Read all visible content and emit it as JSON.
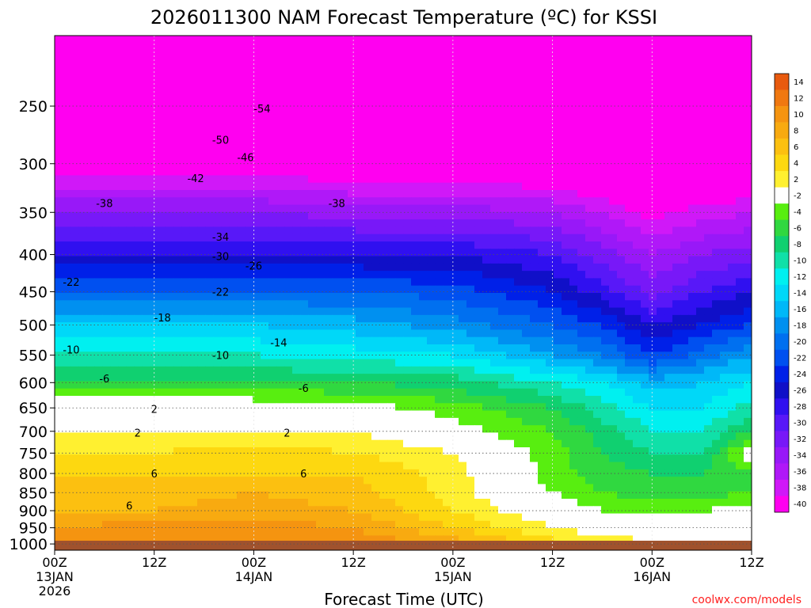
{
  "chart_data": {
    "type": "heatmap",
    "title": "2026011300 NAM Forecast Temperature (ºC) for KSSI",
    "xlabel": "Forecast Time (UTC)",
    "ylabel": "",
    "credit": "coolwx.com/models",
    "x_range_hours": [
      0,
      84
    ],
    "x_ticks": [
      {
        "hour": 0,
        "label": "00Z",
        "sub": "13JAN",
        "sub2": "2026"
      },
      {
        "hour": 12,
        "label": "12Z",
        "sub": "",
        "sub2": ""
      },
      {
        "hour": 24,
        "label": "00Z",
        "sub": "14JAN",
        "sub2": ""
      },
      {
        "hour": 36,
        "label": "12Z",
        "sub": "",
        "sub2": ""
      },
      {
        "hour": 48,
        "label": "00Z",
        "sub": "15JAN",
        "sub2": ""
      },
      {
        "hour": 60,
        "label": "12Z",
        "sub": "",
        "sub2": ""
      },
      {
        "hour": 72,
        "label": "00Z",
        "sub": "16JAN",
        "sub2": ""
      },
      {
        "hour": 84,
        "label": "12Z",
        "sub": "",
        "sub2": ""
      }
    ],
    "y_scale": "pressure",
    "y_range_hpa": [
      1020,
      200
    ],
    "y_ticks": [
      250,
      300,
      350,
      400,
      450,
      500,
      550,
      600,
      650,
      700,
      750,
      800,
      850,
      900,
      950,
      1000
    ],
    "colorbar": {
      "labels": [
        "14",
        "12",
        "10",
        "8",
        "6",
        "4",
        "2",
        "-2",
        "-4",
        "-6",
        "-8",
        "-10",
        "-12",
        "-14",
        "-16",
        "-18",
        "-20",
        "-22",
        "-24",
        "-26",
        "-28",
        "-30",
        "-32",
        "-34",
        "-36",
        "-38",
        "-40"
      ],
      "colors": [
        "#e85a0e",
        "#f07810",
        "#f59410",
        "#f8aa10",
        "#fcc010",
        "#fdd810",
        "#fff030",
        "#ffffff",
        "#58ee10",
        "#30d840",
        "#10d070",
        "#10e0a8",
        "#00f0f0",
        "#00d8f8",
        "#00b8f8",
        "#0090f0",
        "#0070f0",
        "#0050f0",
        "#0020e8",
        "#1010c8",
        "#3010f0",
        "#5818f8",
        "#7818f8",
        "#9818f8",
        "#b018f8",
        "#d018f8",
        "#ff00f0"
      ]
    },
    "temperature_profile": {
      "hours": [
        0,
        12,
        24,
        36,
        48,
        60,
        66,
        72,
        78,
        84
      ],
      "levels_hpa": [
        1000,
        950,
        900,
        850,
        800,
        750,
        700,
        650,
        600,
        550,
        500,
        450,
        400,
        350,
        300,
        250,
        200
      ],
      "celsius": [
        [
          12,
          12,
          12,
          12,
          9,
          5,
          4,
          2,
          2,
          2
        ],
        [
          10,
          11,
          11,
          10,
          6,
          2,
          0,
          0,
          0,
          1
        ],
        [
          8,
          8,
          9,
          8,
          4,
          0,
          -2,
          -3,
          -2,
          -1
        ],
        [
          7,
          7,
          8,
          7,
          3,
          -2,
          -4,
          -5,
          -5,
          -4
        ],
        [
          6,
          6,
          6,
          6,
          3,
          -3,
          -5,
          -6,
          -6,
          -4
        ],
        [
          4,
          4,
          5,
          4,
          2,
          -3,
          -6,
          -8,
          -8,
          0
        ],
        [
          2,
          2,
          2,
          2,
          -1,
          -4,
          -7,
          -10,
          -10,
          -6
        ],
        [
          0,
          0,
          0,
          -1,
          -3,
          -6,
          -9,
          -12,
          -12,
          -9
        ],
        [
          -6,
          -6,
          -6,
          -6,
          -7,
          -10,
          -12,
          -15,
          -14,
          -12
        ],
        [
          -10,
          -10,
          -10,
          -11,
          -12,
          -16,
          -18,
          -22,
          -19,
          -16
        ],
        [
          -14,
          -14,
          -14,
          -15,
          -17,
          -20,
          -22,
          -26,
          -24,
          -22
        ],
        [
          -20,
          -20,
          -20,
          -20,
          -21,
          -24,
          -27,
          -31,
          -28,
          -26
        ],
        [
          -26,
          -26,
          -26,
          -26,
          -26,
          -28,
          -31,
          -34,
          -32,
          -31
        ],
        [
          -32,
          -32,
          -32,
          -33,
          -33,
          -34,
          -36,
          -39,
          -37,
          -36
        ],
        [
          -40,
          -40,
          -40,
          -41,
          -41,
          -42,
          -43,
          -45,
          -44,
          -43
        ],
        [
          -52,
          -52,
          -52,
          -52,
          -51,
          -50,
          -49,
          -48,
          -49,
          -50
        ],
        [
          -58,
          -58,
          -58,
          -58,
          -57,
          -56,
          -55,
          -54,
          -55,
          -56
        ]
      ]
    },
    "contour_labels": [
      {
        "value": "-54",
        "hour": 25,
        "hpa": 252
      },
      {
        "value": "-50",
        "hour": 20,
        "hpa": 278
      },
      {
        "value": "-46",
        "hour": 23,
        "hpa": 294
      },
      {
        "value": "-42",
        "hour": 17,
        "hpa": 314
      },
      {
        "value": "-38",
        "hour": 6,
        "hpa": 340
      },
      {
        "value": "-38",
        "hour": 34,
        "hpa": 340
      },
      {
        "value": "-34",
        "hour": 20,
        "hpa": 378
      },
      {
        "value": "-30",
        "hour": 20,
        "hpa": 402
      },
      {
        "value": "-26",
        "hour": 24,
        "hpa": 414
      },
      {
        "value": "-22",
        "hour": 2,
        "hpa": 436
      },
      {
        "value": "-22",
        "hour": 20,
        "hpa": 450
      },
      {
        "value": "-18",
        "hour": 13,
        "hpa": 488
      },
      {
        "value": "-14",
        "hour": 27,
        "hpa": 528
      },
      {
        "value": "-10",
        "hour": 2,
        "hpa": 540
      },
      {
        "value": "-10",
        "hour": 20,
        "hpa": 550
      },
      {
        "value": "-6",
        "hour": 6,
        "hpa": 592
      },
      {
        "value": "-6",
        "hour": 30,
        "hpa": 610
      },
      {
        "value": "2",
        "hour": 12,
        "hpa": 652
      },
      {
        "value": "2",
        "hour": 10,
        "hpa": 703
      },
      {
        "value": "2",
        "hour": 28,
        "hpa": 703
      },
      {
        "value": "6",
        "hour": 12,
        "hpa": 800
      },
      {
        "value": "6",
        "hour": 30,
        "hpa": 800
      },
      {
        "value": "6",
        "hour": 9,
        "hpa": 885
      }
    ]
  }
}
